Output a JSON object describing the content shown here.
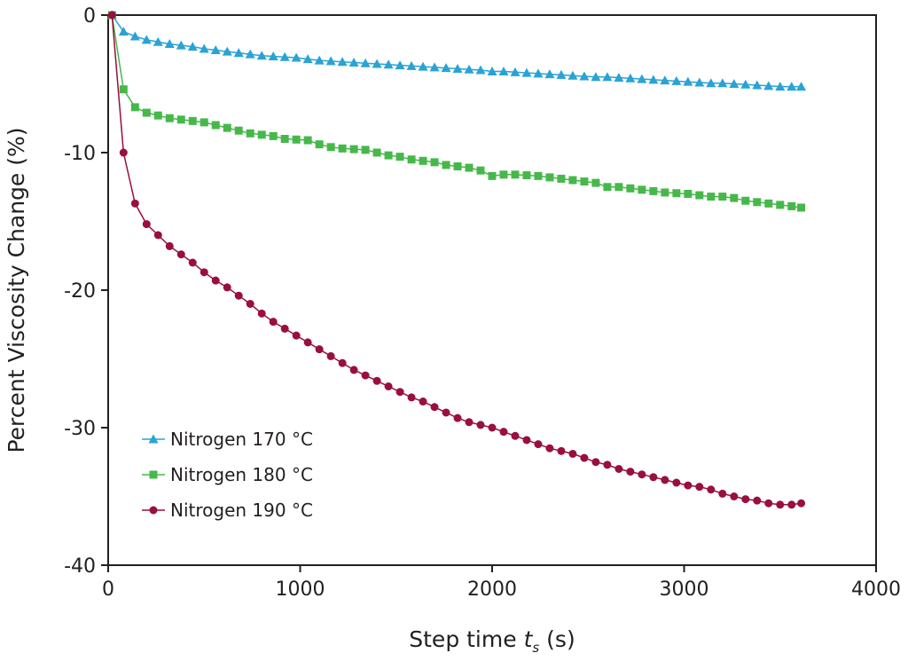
{
  "chart_data": {
    "type": "line",
    "title": "",
    "xlabel": "Step time",
    "xlabel_var": "t",
    "xlabel_sub": "s",
    "xlabel_unit": "(s)",
    "ylabel": "Percent Viscosity Change (%)",
    "xlim": [
      0,
      4000
    ],
    "ylim": [
      -40,
      0
    ],
    "xticks": [
      0,
      1000,
      2000,
      3000,
      4000
    ],
    "yticks": [
      0,
      -10,
      -20,
      -30,
      -40
    ],
    "grid": false,
    "legend_position": "bottom-left",
    "series": [
      {
        "name": "Nitrogen 170 °C",
        "color": "#29a3d6",
        "marker": "triangle",
        "x": [
          20,
          80,
          140,
          200,
          260,
          320,
          380,
          440,
          500,
          560,
          620,
          680,
          740,
          800,
          860,
          920,
          980,
          1040,
          1100,
          1160,
          1220,
          1280,
          1340,
          1400,
          1460,
          1520,
          1580,
          1640,
          1700,
          1760,
          1820,
          1880,
          1940,
          2000,
          2060,
          2120,
          2180,
          2240,
          2300,
          2360,
          2420,
          2480,
          2540,
          2600,
          2660,
          2720,
          2780,
          2840,
          2900,
          2960,
          3020,
          3080,
          3140,
          3200,
          3260,
          3320,
          3380,
          3440,
          3500,
          3560,
          3610
        ],
        "y": [
          0,
          -1.2,
          -1.55,
          -1.8,
          -1.95,
          -2.1,
          -2.2,
          -2.3,
          -2.45,
          -2.55,
          -2.65,
          -2.75,
          -2.85,
          -2.95,
          -3.0,
          -3.05,
          -3.1,
          -3.2,
          -3.3,
          -3.35,
          -3.4,
          -3.45,
          -3.5,
          -3.55,
          -3.6,
          -3.65,
          -3.7,
          -3.75,
          -3.8,
          -3.85,
          -3.9,
          -3.95,
          -4.0,
          -4.1,
          -4.1,
          -4.15,
          -4.2,
          -4.25,
          -4.3,
          -4.35,
          -4.4,
          -4.45,
          -4.5,
          -4.5,
          -4.55,
          -4.6,
          -4.65,
          -4.7,
          -4.75,
          -4.8,
          -4.85,
          -4.9,
          -4.95,
          -4.95,
          -5.0,
          -5.05,
          -5.1,
          -5.15,
          -5.2,
          -5.2,
          -5.2
        ]
      },
      {
        "name": "Nitrogen 180 °C",
        "color": "#46b84a",
        "marker": "square",
        "x": [
          20,
          80,
          140,
          200,
          260,
          320,
          380,
          440,
          500,
          560,
          620,
          680,
          740,
          800,
          860,
          920,
          980,
          1040,
          1100,
          1160,
          1220,
          1280,
          1340,
          1400,
          1460,
          1520,
          1580,
          1640,
          1700,
          1760,
          1820,
          1880,
          1940,
          2000,
          2060,
          2120,
          2180,
          2240,
          2300,
          2360,
          2420,
          2480,
          2540,
          2600,
          2660,
          2720,
          2780,
          2840,
          2900,
          2960,
          3020,
          3080,
          3140,
          3200,
          3260,
          3320,
          3380,
          3440,
          3500,
          3560,
          3610
        ],
        "y": [
          0,
          -5.4,
          -6.7,
          -7.1,
          -7.3,
          -7.5,
          -7.6,
          -7.7,
          -7.8,
          -8.0,
          -8.2,
          -8.4,
          -8.6,
          -8.7,
          -8.8,
          -9.0,
          -9.05,
          -9.1,
          -9.4,
          -9.6,
          -9.7,
          -9.75,
          -9.8,
          -10.0,
          -10.2,
          -10.3,
          -10.5,
          -10.6,
          -10.7,
          -10.9,
          -11.0,
          -11.1,
          -11.3,
          -11.7,
          -11.6,
          -11.6,
          -11.65,
          -11.7,
          -11.8,
          -11.9,
          -12.0,
          -12.1,
          -12.2,
          -12.5,
          -12.5,
          -12.6,
          -12.7,
          -12.8,
          -12.9,
          -12.95,
          -13.0,
          -13.1,
          -13.2,
          -13.2,
          -13.3,
          -13.5,
          -13.6,
          -13.7,
          -13.8,
          -13.9,
          -14.0
        ]
      },
      {
        "name": "Nitrogen 190 °C",
        "color": "#990f3d",
        "marker": "circle",
        "x": [
          20,
          80,
          140,
          200,
          260,
          320,
          380,
          440,
          500,
          560,
          620,
          680,
          740,
          800,
          860,
          920,
          980,
          1040,
          1100,
          1160,
          1220,
          1280,
          1340,
          1400,
          1460,
          1520,
          1580,
          1640,
          1700,
          1760,
          1820,
          1880,
          1940,
          2000,
          2060,
          2120,
          2180,
          2240,
          2300,
          2360,
          2420,
          2480,
          2540,
          2600,
          2660,
          2720,
          2780,
          2840,
          2900,
          2960,
          3020,
          3080,
          3140,
          3200,
          3260,
          3320,
          3380,
          3440,
          3500,
          3560,
          3610
        ],
        "y": [
          0,
          -10.0,
          -13.7,
          -15.2,
          -16.0,
          -16.8,
          -17.4,
          -18.0,
          -18.7,
          -19.3,
          -19.8,
          -20.4,
          -21.0,
          -21.7,
          -22.3,
          -22.8,
          -23.3,
          -23.8,
          -24.3,
          -24.8,
          -25.3,
          -25.8,
          -26.2,
          -26.6,
          -27.0,
          -27.4,
          -27.8,
          -28.1,
          -28.5,
          -28.9,
          -29.3,
          -29.6,
          -29.8,
          -30.0,
          -30.3,
          -30.6,
          -30.9,
          -31.2,
          -31.5,
          -31.7,
          -31.9,
          -32.2,
          -32.5,
          -32.7,
          -33.0,
          -33.2,
          -33.4,
          -33.6,
          -33.8,
          -34.0,
          -34.2,
          -34.3,
          -34.5,
          -34.8,
          -35.0,
          -35.2,
          -35.3,
          -35.5,
          -35.6,
          -35.6,
          -35.5
        ]
      }
    ]
  }
}
